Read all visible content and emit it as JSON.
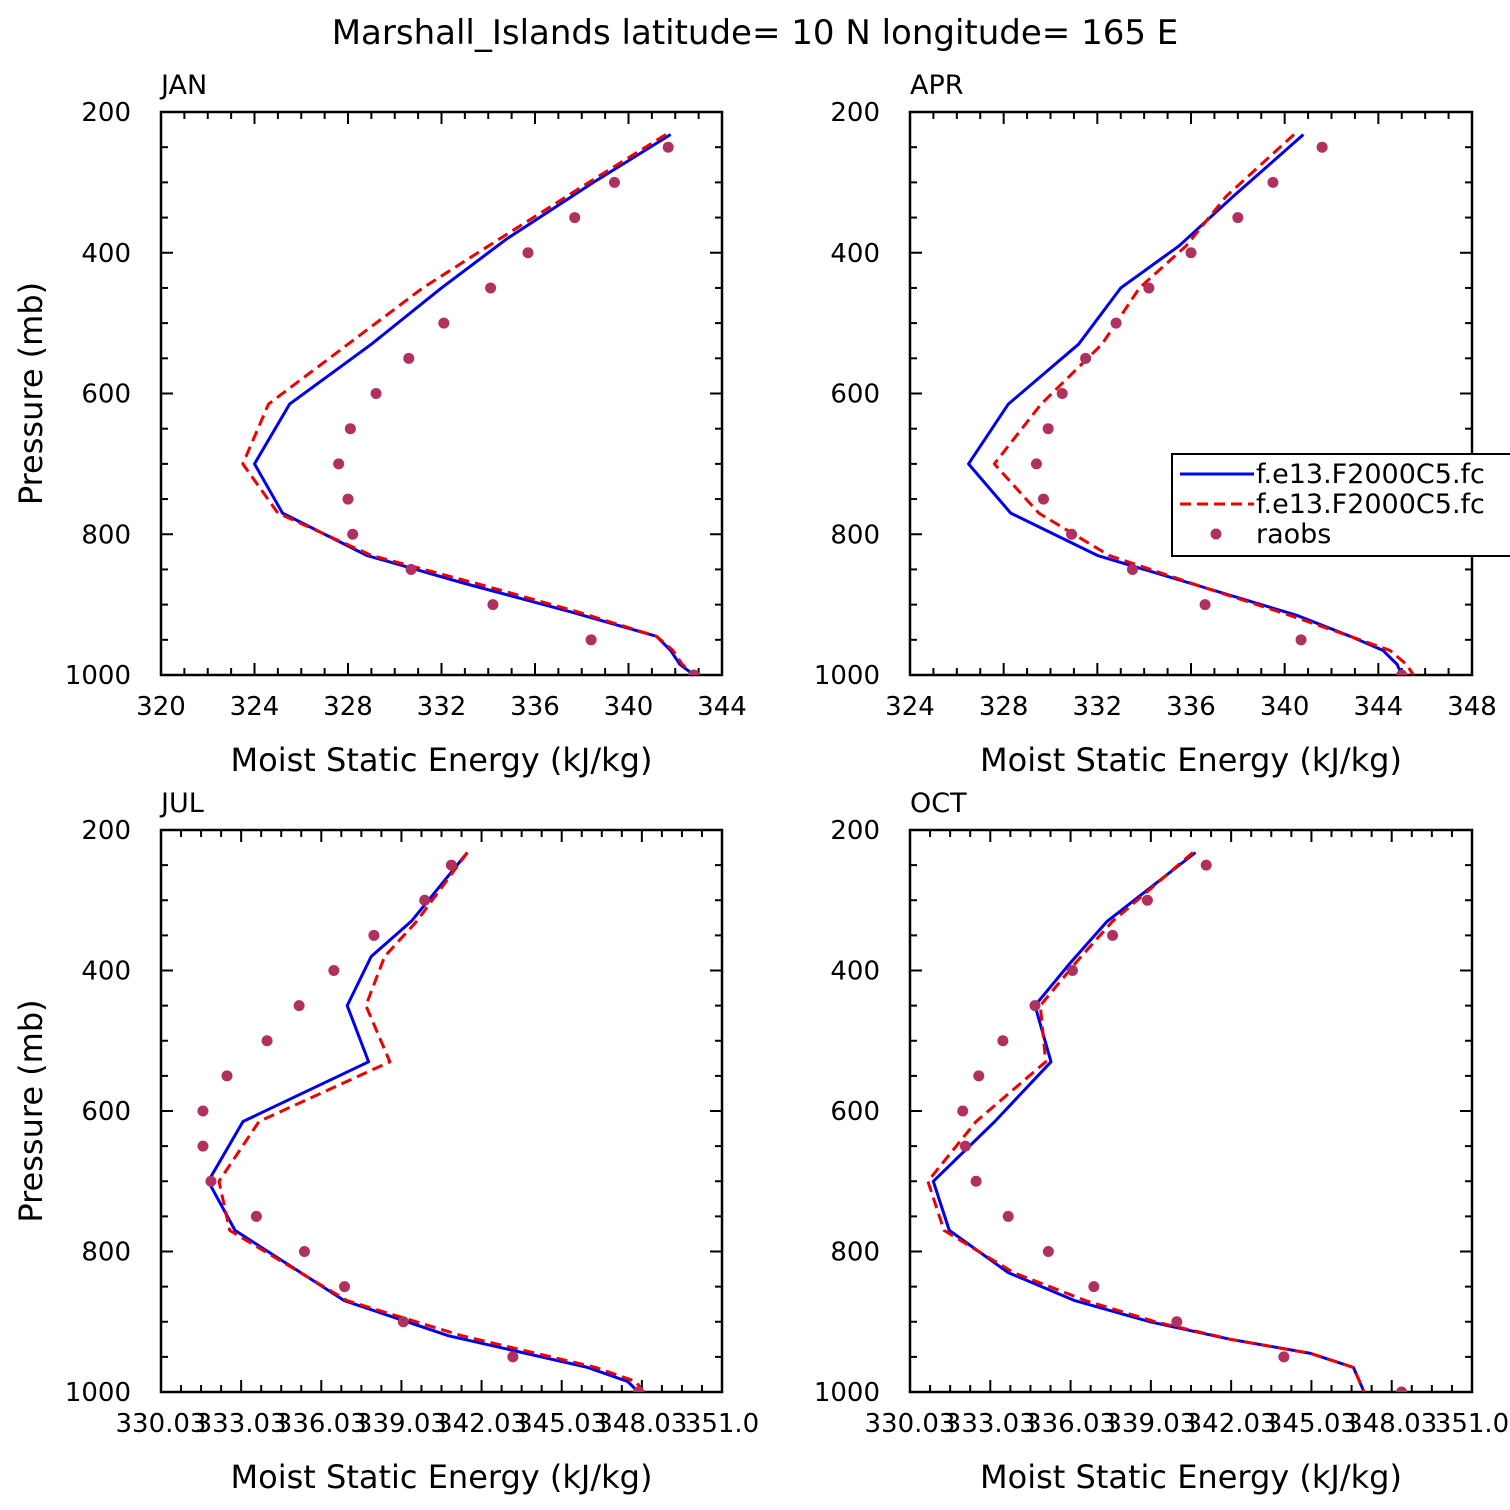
{
  "figure": {
    "title": "Marshall_Islands  latitude= 10 N longitude= 165 E"
  },
  "colors": {
    "model_a": "#0000ee",
    "model_b": "#ee0000",
    "raobs": "#b03060",
    "axes": "#000000"
  },
  "legend": {
    "entries": [
      "f.e13.F2000C5.fc",
      "f.e13.F2000C5.fc",
      "raobs"
    ]
  },
  "chart_data": [
    {
      "type": "line",
      "label": "JAN",
      "xlabel": "Moist Static Energy (kJ/kg)",
      "ylabel": "Pressure (mb)",
      "xlim": [
        320,
        344
      ],
      "ylim": [
        1000,
        200
      ],
      "xticks": [
        320,
        324,
        328,
        332,
        336,
        340,
        344
      ],
      "xtick_labels": [
        "320",
        "324",
        "328",
        "332",
        "336",
        "340",
        "344"
      ],
      "yticks": [
        200,
        400,
        600,
        800,
        1000
      ],
      "ytick_labels": [
        "200",
        "400",
        "600",
        "800",
        "1000"
      ],
      "series": [
        {
          "name": "f.e13.F2000C5.fc",
          "style": "solid",
          "x": [
            341.8,
            338.5,
            334.8,
            332.0,
            329.0,
            325.5,
            324.0,
            325.2,
            328.8,
            333.0,
            337.5,
            341.2,
            341.8,
            342.2,
            342.8
          ],
          "y": [
            232,
            300,
            380,
            450,
            530,
            615,
            700,
            770,
            830,
            870,
            910,
            945,
            965,
            985,
            1000
          ]
        },
        {
          "name": "f.e13.F2000C5.fc",
          "style": "dashed",
          "x": [
            341.6,
            338.3,
            334.5,
            331.2,
            328.0,
            324.6,
            323.5,
            325.0,
            329.0,
            333.5,
            337.8,
            341.2,
            341.9,
            342.3,
            342.8
          ],
          "y": [
            232,
            300,
            380,
            450,
            530,
            615,
            700,
            770,
            830,
            870,
            910,
            945,
            965,
            985,
            1000
          ]
        },
        {
          "name": "raobs",
          "style": "markers",
          "x": [
            341.7,
            339.4,
            337.7,
            335.7,
            334.1,
            332.1,
            330.6,
            329.2,
            328.1,
            327.6,
            328.0,
            328.2,
            330.7,
            334.2,
            338.4,
            342.8
          ],
          "y": [
            250,
            300,
            350,
            400,
            450,
            500,
            550,
            600,
            650,
            700,
            750,
            800,
            850,
            900,
            950,
            1000
          ]
        }
      ]
    },
    {
      "type": "line",
      "label": "APR",
      "xlabel": "Moist Static Energy (kJ/kg)",
      "ylabel": "",
      "xlim": [
        324,
        348
      ],
      "ylim": [
        1000,
        200
      ],
      "xticks": [
        324,
        328,
        332,
        336,
        340,
        344,
        348
      ],
      "xtick_labels": [
        "324",
        "328",
        "332",
        "336",
        "340",
        "344",
        "348"
      ],
      "yticks": [
        200,
        400,
        600,
        800,
        1000
      ],
      "ytick_labels": [
        "200",
        "400",
        "600",
        "800",
        "1000"
      ],
      "series": [
        {
          "name": "f.e13.F2000C5.fc",
          "style": "solid",
          "x": [
            340.8,
            337.8,
            335.5,
            333.0,
            331.2,
            328.2,
            326.5,
            328.3,
            332.0,
            336.5,
            340.5,
            342.8,
            344.2,
            344.8,
            345.0
          ],
          "y": [
            232,
            320,
            390,
            450,
            530,
            615,
            700,
            770,
            830,
            875,
            915,
            945,
            965,
            985,
            1000
          ]
        },
        {
          "name": "f.e13.F2000C5.fc",
          "style": "dashed",
          "x": [
            340.4,
            337.5,
            335.8,
            333.8,
            332.2,
            329.6,
            327.6,
            329.5,
            332.5,
            336.5,
            340.2,
            342.8,
            344.5,
            345.2,
            345.5
          ],
          "y": [
            232,
            320,
            390,
            450,
            530,
            615,
            700,
            770,
            830,
            875,
            915,
            945,
            965,
            985,
            1000
          ]
        },
        {
          "name": "raobs",
          "style": "markers",
          "x": [
            341.6,
            339.5,
            338.0,
            336.0,
            334.2,
            332.8,
            331.5,
            330.5,
            329.9,
            329.4,
            329.7,
            330.9,
            333.5,
            336.6,
            340.7,
            345.0
          ],
          "y": [
            250,
            300,
            350,
            400,
            450,
            500,
            550,
            600,
            650,
            700,
            750,
            800,
            850,
            900,
            950,
            1000
          ]
        }
      ]
    },
    {
      "type": "line",
      "label": "JUL",
      "xlabel": "Moist Static Energy (kJ/kg)",
      "ylabel": "Pressure (mb)",
      "xlim": [
        330.03,
        351.03
      ],
      "ylim": [
        1000,
        200
      ],
      "xticks": [
        330.03,
        333.03,
        336.03,
        339.03,
        342.03,
        345.03,
        348.03,
        351.03
      ],
      "xtick_labels": [
        "330.03",
        "333.03",
        "336.03",
        "339.03",
        "342.03",
        "345.03",
        "348.03",
        "351.0"
      ],
      "yticks": [
        200,
        400,
        600,
        800,
        1000
      ],
      "ytick_labels": [
        "200",
        "400",
        "600",
        "800",
        "1000"
      ],
      "series": [
        {
          "name": "f.e13.F2000C5.fc",
          "style": "solid",
          "x": [
            341.5,
            339.4,
            337.9,
            337.0,
            337.8,
            333.1,
            331.8,
            332.8,
            336.9,
            340.8,
            346.0,
            347.5,
            347.9
          ],
          "y": [
            232,
            330,
            380,
            450,
            530,
            615,
            700,
            770,
            870,
            920,
            965,
            985,
            1000
          ]
        },
        {
          "name": "f.e13.F2000C5.fc",
          "style": "dashed",
          "x": [
            341.5,
            339.6,
            338.4,
            337.7,
            338.6,
            333.7,
            332.2,
            332.6,
            337.0,
            341.3,
            346.3,
            347.8,
            348.1
          ],
          "y": [
            232,
            330,
            380,
            450,
            530,
            615,
            700,
            770,
            870,
            920,
            965,
            985,
            1000
          ]
        },
        {
          "name": "raobs",
          "style": "markers",
          "x": [
            340.9,
            339.9,
            338.0,
            336.5,
            335.2,
            334.0,
            332.5,
            331.6,
            331.6,
            331.9,
            333.6,
            335.4,
            336.9,
            339.1,
            343.2,
            347.9
          ],
          "y": [
            250,
            300,
            350,
            400,
            450,
            500,
            550,
            600,
            650,
            700,
            750,
            800,
            850,
            900,
            950,
            1000
          ]
        }
      ]
    },
    {
      "type": "line",
      "label": "OCT",
      "xlabel": "Moist Static Energy (kJ/kg)",
      "ylabel": "",
      "xlim": [
        330.03,
        351.03
      ],
      "ylim": [
        1000,
        200
      ],
      "xticks": [
        330.03,
        333.03,
        336.03,
        339.03,
        342.03,
        345.03,
        348.03,
        351.03
      ],
      "xtick_labels": [
        "330.03",
        "333.03",
        "336.03",
        "339.03",
        "342.03",
        "345.03",
        "348.03",
        "351.0"
      ],
      "yticks": [
        200,
        400,
        600,
        800,
        1000
      ],
      "ytick_labels": [
        "200",
        "400",
        "600",
        "800",
        "1000"
      ],
      "series": [
        {
          "name": "f.e13.F2000C5.fc",
          "style": "solid",
          "x": [
            340.7,
            337.4,
            336.0,
            334.7,
            335.3,
            333.2,
            330.9,
            331.5,
            333.7,
            336.2,
            339.0,
            342.0,
            345.0,
            346.6,
            347.0
          ],
          "y": [
            232,
            330,
            390,
            450,
            530,
            615,
            700,
            770,
            830,
            870,
            900,
            925,
            945,
            965,
            1000
          ]
        },
        {
          "name": "f.e13.F2000C5.fc",
          "style": "dashed",
          "x": [
            340.6,
            337.6,
            336.2,
            334.9,
            335.1,
            332.5,
            330.7,
            331.3,
            333.9,
            336.6,
            339.2,
            342.0,
            345.0,
            346.6,
            347.0
          ],
          "y": [
            232,
            330,
            390,
            450,
            530,
            615,
            700,
            770,
            830,
            870,
            900,
            925,
            945,
            965,
            1000
          ]
        },
        {
          "name": "raobs",
          "style": "markers",
          "x": [
            341.1,
            338.9,
            337.6,
            336.1,
            334.7,
            333.5,
            332.6,
            332.0,
            332.1,
            332.5,
            333.7,
            335.2,
            336.9,
            340.0,
            344.0,
            348.4
          ],
          "y": [
            250,
            300,
            350,
            400,
            450,
            500,
            550,
            600,
            650,
            700,
            750,
            800,
            850,
            900,
            950,
            1000
          ]
        }
      ]
    }
  ]
}
